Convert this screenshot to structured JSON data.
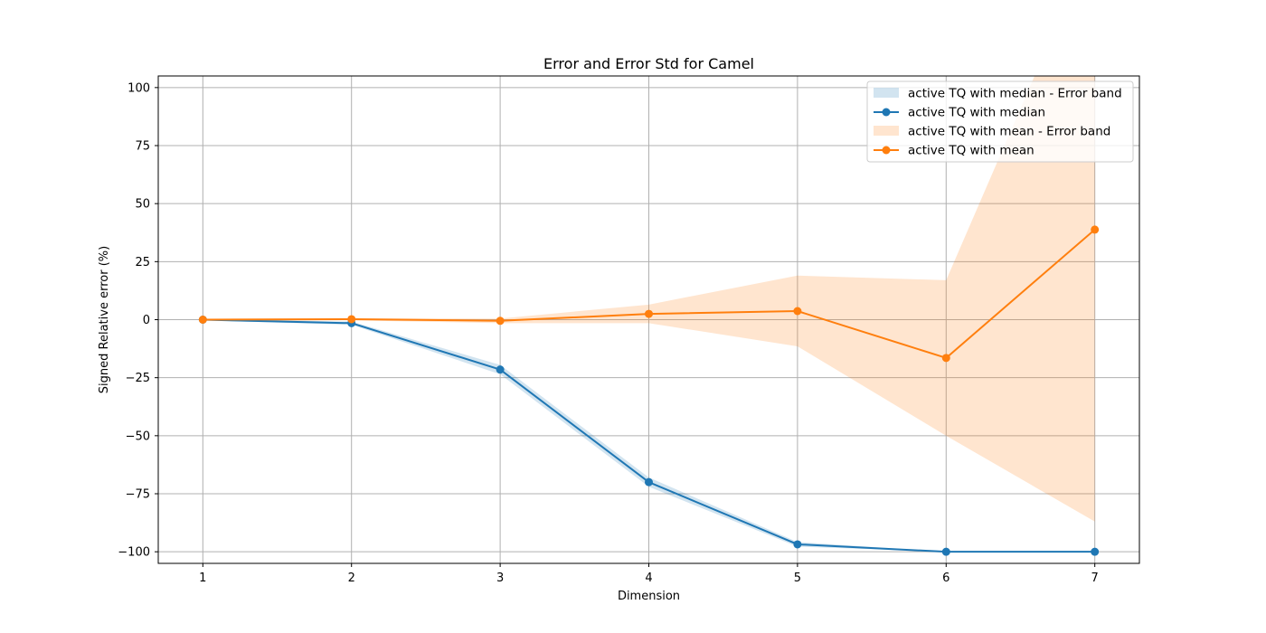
{
  "chart_data": {
    "type": "line",
    "title": "Error and Error Std for Camel",
    "xlabel": "Dimension",
    "ylabel": "Signed Relative error (%)",
    "x": [
      1,
      2,
      3,
      4,
      5,
      6,
      7
    ],
    "xlim": [
      0.7,
      7.3
    ],
    "ylim": [
      -105,
      105
    ],
    "xticks": [
      1,
      2,
      3,
      4,
      5,
      6,
      7
    ],
    "yticks": [
      -100,
      -75,
      -50,
      -25,
      0,
      25,
      50,
      75,
      100
    ],
    "grid": true,
    "legend_position": "top-right",
    "series": [
      {
        "name": "active TQ with median",
        "band_name": "active TQ with median - Error band",
        "color": "#1f77b4",
        "band_color": "#1f77b4",
        "values": [
          0,
          -1.5,
          -21.5,
          -70,
          -96.8,
          -100,
          -100
        ],
        "band_lower": [
          -0.3,
          -2.2,
          -23.5,
          -72,
          -97.8,
          -100,
          -100
        ],
        "band_upper": [
          0.3,
          -0.8,
          -19.5,
          -68,
          -95.8,
          -100,
          -100
        ]
      },
      {
        "name": "active TQ with mean",
        "band_name": "active TQ with mean - Error band",
        "color": "#ff7f0e",
        "band_color": "#ff7f0e",
        "values": [
          0,
          0.2,
          -0.5,
          2.5,
          3.7,
          -16.5,
          38.8
        ],
        "band_lower": [
          -0.3,
          -0.3,
          -1.5,
          -1.5,
          -11.5,
          -50,
          -87
        ],
        "band_upper": [
          0.3,
          0.7,
          0.5,
          6.5,
          19,
          17,
          165
        ]
      }
    ]
  }
}
